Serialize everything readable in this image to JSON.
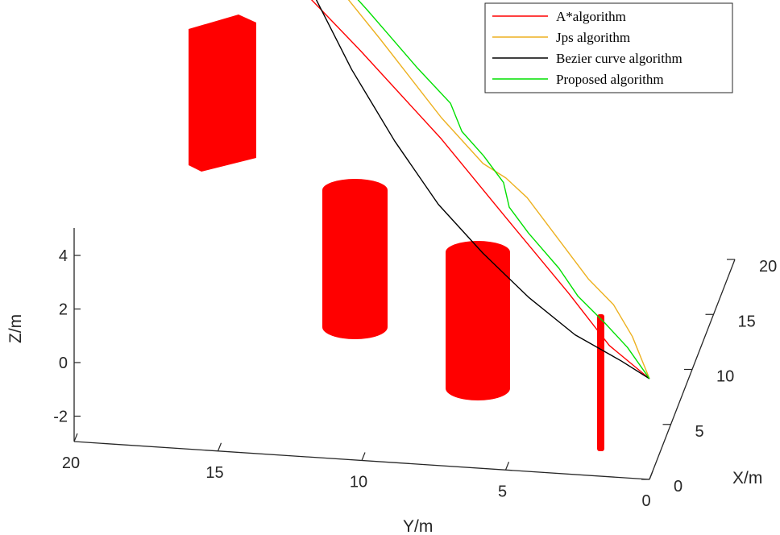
{
  "chart_data": {
    "type": "line3d",
    "title": "",
    "xlabel": "X/m",
    "ylabel": "Y/m",
    "zlabel": "Z/m",
    "xlim": [
      0,
      20
    ],
    "ylim": [
      0,
      20
    ],
    "zlim": [
      -3,
      5
    ],
    "x_ticks": [
      "0",
      "5",
      "10",
      "15",
      "20"
    ],
    "y_ticks": [
      "20",
      "15",
      "10",
      "5",
      "0"
    ],
    "z_ticks": [
      "4",
      "2",
      "0",
      "-2"
    ],
    "grid": false,
    "legend_position": "top-right",
    "series": [
      {
        "name": "A*algorithm",
        "color": "#ff0000",
        "points": [
          [
            18.5,
            18.8,
            4.9
          ],
          [
            17.0,
            18.3,
            4.2
          ],
          [
            15.2,
            17.8,
            3.2
          ],
          [
            14.6,
            17.0,
            2.9
          ],
          [
            12.0,
            13.8,
            2.3
          ],
          [
            9.0,
            10.0,
            1.4
          ],
          [
            5.8,
            6.8,
            0.6
          ],
          [
            3.0,
            3.8,
            -0.2
          ],
          [
            1.0,
            1.8,
            -0.8
          ],
          [
            0.0,
            0.0,
            -1.0
          ]
        ]
      },
      {
        "name": "Jps algorithm",
        "color": "#edb120",
        "points": [
          [
            18.5,
            18.8,
            4.8
          ],
          [
            18.0,
            18.2,
            4.5
          ],
          [
            15.0,
            16.0,
            3.9
          ],
          [
            12.0,
            13.0,
            3.1
          ],
          [
            9.0,
            10.0,
            2.2
          ],
          [
            7.2,
            8.0,
            1.8
          ],
          [
            6.8,
            7.0,
            1.8
          ],
          [
            6.0,
            6.0,
            1.7
          ],
          [
            3.0,
            3.0,
            0.7
          ],
          [
            2.0,
            1.8,
            0.5
          ],
          [
            1.2,
            0.9,
            -0.1
          ],
          [
            0.0,
            0.0,
            -1.0
          ]
        ]
      },
      {
        "name": "Bezier curve algorithm",
        "color": "#000000",
        "points": [
          [
            18.5,
            18.8,
            4.9
          ],
          [
            16.0,
            16.6,
            2.6
          ],
          [
            13.4,
            14.4,
            1.0
          ],
          [
            10.8,
            12.2,
            -0.1
          ],
          [
            8.3,
            10.0,
            -0.9
          ],
          [
            6.0,
            7.8,
            -1.2
          ],
          [
            4.0,
            5.6,
            -1.4
          ],
          [
            2.2,
            3.4,
            -1.4
          ],
          [
            0.8,
            1.3,
            -1.1
          ],
          [
            0.0,
            0.0,
            -1.0
          ]
        ]
      },
      {
        "name": "Proposed algorithm",
        "color": "#00e000",
        "points": [
          [
            18.5,
            18.8,
            4.9
          ],
          [
            17.5,
            17.3,
            4.4
          ],
          [
            16.2,
            16.3,
            4.1
          ],
          [
            15.0,
            15.4,
            3.8
          ],
          [
            13.5,
            13.8,
            3.5
          ],
          [
            12.5,
            12.8,
            3.3
          ],
          [
            11.0,
            11.3,
            3.0
          ],
          [
            10.0,
            9.8,
            2.6
          ],
          [
            9.2,
            9.2,
            2.0
          ],
          [
            8.5,
            8.2,
            1.7
          ],
          [
            7.4,
            7.2,
            1.4
          ],
          [
            7.0,
            6.9,
            0.7
          ],
          [
            6.3,
            6.0,
            0.3
          ],
          [
            4.8,
            4.5,
            0.0
          ],
          [
            3.5,
            3.5,
            -0.3
          ],
          [
            2.2,
            2.2,
            -0.4
          ],
          [
            1.2,
            1.1,
            -0.6
          ],
          [
            0.0,
            0.0,
            -1.0
          ]
        ]
      }
    ],
    "obstacles": [
      {
        "shape": "box",
        "color": "#ff0000"
      },
      {
        "shape": "cylinder",
        "color": "#ff0000"
      },
      {
        "shape": "cylinder",
        "color": "#ff0000"
      },
      {
        "shape": "pole",
        "color": "#ff0000"
      }
    ]
  }
}
